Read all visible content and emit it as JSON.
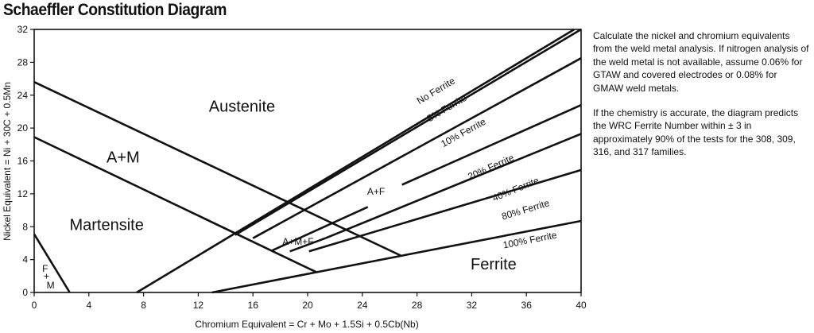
{
  "title": "Schaeffler Constitution Diagram",
  "notes": [
    "Calculate the nickel and chromium equivalents from the weld metal analysis. If nitrogen analysis of the weld metal is not available, assume 0.06% for GTAW and covered electrodes or 0.08% for GMAW weld metals.",
    "If the chemistry is accurate, the diagram predicts the WRC Ferrite Number within ± 3 in approximately 90% of the tests for the 308, 309, 316, and 317 families."
  ],
  "chart_data": {
    "type": "line",
    "title": "Schaeffler Constitution Diagram",
    "xlabel": "Chromium Equivalent = Cr + Mo + 1.5Si + 0.5Cb(Nb)",
    "ylabel": "Nickel Equivalent = Ni + 30C + 0.5Mn",
    "xlim": [
      0,
      40
    ],
    "ylim": [
      0,
      32
    ],
    "x_ticks": [
      0,
      4,
      8,
      12,
      16,
      20,
      24,
      28,
      32,
      36,
      40
    ],
    "y_ticks": [
      0,
      4,
      8,
      12,
      16,
      20,
      24,
      28,
      32
    ],
    "grid": false,
    "boundaries": [
      {
        "id": "austenite-upper",
        "points": [
          [
            0,
            25.6
          ],
          [
            26.8,
            4.5
          ]
        ]
      },
      {
        "id": "martensite-upper",
        "points": [
          [
            0,
            18.9
          ],
          [
            20.6,
            2.5
          ]
        ]
      },
      {
        "id": "martensite-lower",
        "points": [
          [
            0,
            7.1
          ],
          [
            2.6,
            0
          ]
        ]
      },
      {
        "id": "no-ferrite",
        "points": [
          [
            7.5,
            0
          ],
          [
            39.5,
            32
          ]
        ]
      },
      {
        "id": "5-ferrite",
        "points": [
          [
            14.7,
            7.0
          ],
          [
            40,
            32
          ]
        ]
      },
      {
        "id": "10-ferrite",
        "points": [
          [
            16,
            6.6
          ],
          [
            40,
            28.5
          ]
        ]
      },
      {
        "id": "20-ferrite-lower",
        "points": [
          [
            17.4,
            5.1
          ],
          [
            24.4,
            10.4
          ]
        ]
      },
      {
        "id": "20-ferrite-upper",
        "points": [
          [
            26.9,
            13.1
          ],
          [
            40,
            22.8
          ]
        ]
      },
      {
        "id": "40-ferrite-lower",
        "points": [
          [
            18.7,
            5.0
          ],
          [
            21.3,
            6.6
          ]
        ]
      },
      {
        "id": "40-ferrite-upper",
        "points": [
          [
            21.3,
            6.6
          ],
          [
            40,
            19.3
          ]
        ]
      },
      {
        "id": "80-ferrite",
        "points": [
          [
            20.1,
            5.0
          ],
          [
            40,
            14.9
          ]
        ]
      },
      {
        "id": "100-ferrite",
        "points": [
          [
            13,
            0
          ],
          [
            40,
            8.7
          ]
        ]
      }
    ],
    "line_labels": [
      {
        "text": "No Ferrite",
        "x": 29.5,
        "y": 24.2
      },
      {
        "text": "5% Ferrite",
        "x": 30.3,
        "y": 22.1
      },
      {
        "text": "10% Ferrite",
        "x": 31.5,
        "y": 19.1
      },
      {
        "text": "20% Ferrite",
        "x": 33.5,
        "y": 14.9
      },
      {
        "text": "40% Ferrite",
        "x": 35.3,
        "y": 12.2
      },
      {
        "text": "80% Ferrite",
        "x": 36.0,
        "y": 9.7
      },
      {
        "text": "100% Ferrite",
        "x": 36.3,
        "y": 6.0
      },
      {
        "text": "A+F",
        "x": 25.0,
        "y": 11.9
      },
      {
        "text": "A+M+F",
        "x": 19.3,
        "y": 5.8
      }
    ],
    "region_labels": [
      {
        "text": "Austenite",
        "x": 15.2,
        "y": 22.0,
        "size": 20
      },
      {
        "text": "A+M",
        "x": 6.5,
        "y": 15.8,
        "size": 20
      },
      {
        "text": "Martensite",
        "x": 5.3,
        "y": 7.6,
        "size": 20
      },
      {
        "text": "Ferrite",
        "x": 33.6,
        "y": 2.8,
        "size": 20
      },
      {
        "text": "F",
        "x": 0.8,
        "y": 2.5,
        "size": 12
      },
      {
        "text": "+",
        "x": 0.9,
        "y": 1.6,
        "size": 12
      },
      {
        "text": "M",
        "x": 1.2,
        "y": 0.5,
        "size": 12
      }
    ]
  }
}
